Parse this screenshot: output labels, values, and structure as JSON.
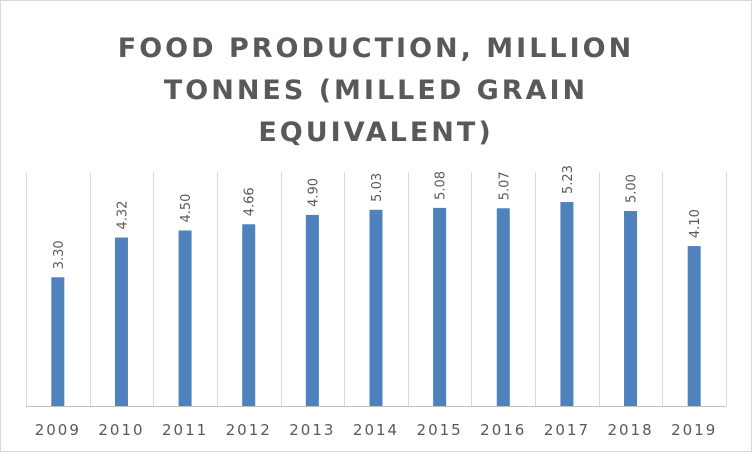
{
  "chart_data": {
    "type": "bar",
    "title_lines": [
      "FOOD PRODUCTION, MILLION",
      "TONNES (MILLED GRAIN",
      "EQUIVALENT)"
    ],
    "categories": [
      "2009",
      "2010",
      "2011",
      "2012",
      "2013",
      "2014",
      "2015",
      "2016",
      "2017",
      "2018",
      "2019"
    ],
    "values": [
      3.3,
      4.32,
      4.5,
      4.66,
      4.9,
      5.03,
      5.08,
      5.07,
      5.23,
      5.0,
      4.1
    ],
    "data_labels": [
      "3.30",
      "4.32",
      "4.50",
      "4.66",
      "4.90",
      "5.03",
      "5.08",
      "5.07",
      "5.23",
      "5.00",
      "4.10"
    ],
    "ylim": [
      0,
      6
    ],
    "bar_color": "#4f81bd",
    "gridlines": "vertical",
    "legend": "none"
  }
}
